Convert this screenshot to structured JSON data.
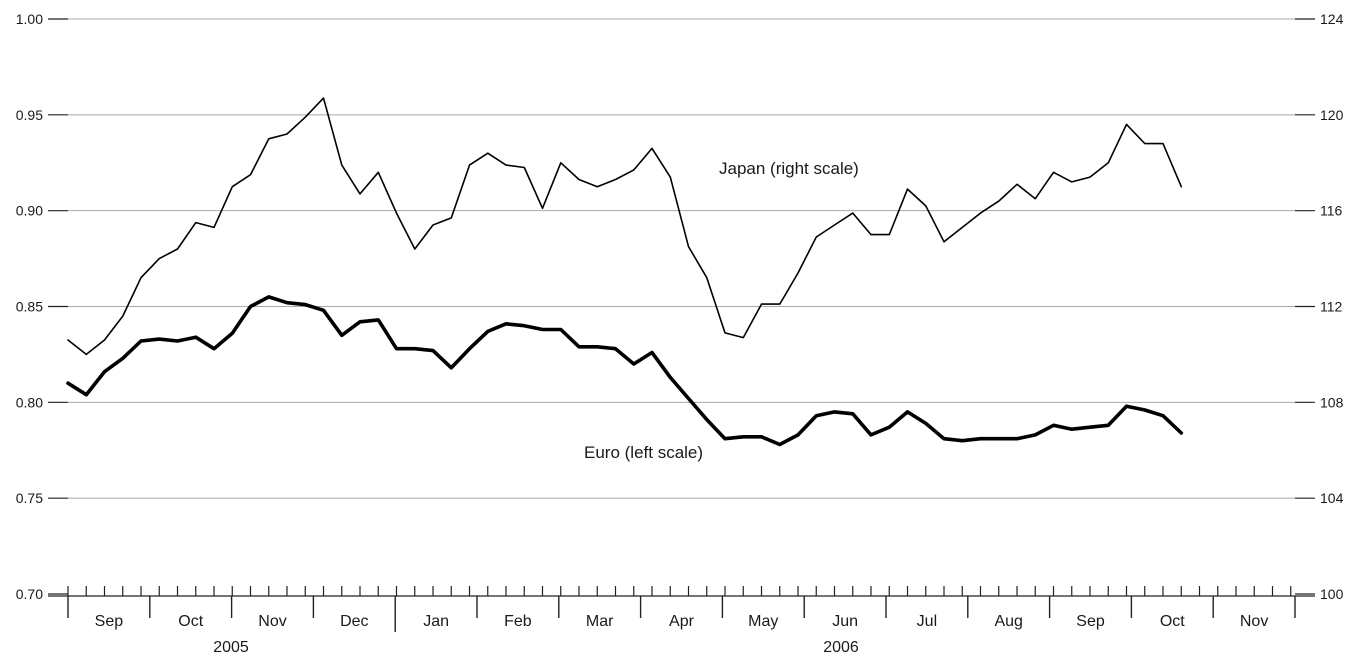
{
  "chart_data": {
    "type": "line",
    "title": "",
    "xlabel": "",
    "ylabel": "",
    "grid": true,
    "x_axis": {
      "months": [
        {
          "label": "Sep",
          "year": 2005
        },
        {
          "label": "Oct",
          "year": 2005
        },
        {
          "label": "Nov",
          "year": 2005
        },
        {
          "label": "Dec",
          "year": 2005
        },
        {
          "label": "Jan",
          "year": 2006
        },
        {
          "label": "Feb",
          "year": 2006
        },
        {
          "label": "Mar",
          "year": 2006
        },
        {
          "label": "Apr",
          "year": 2006
        },
        {
          "label": "May",
          "year": 2006
        },
        {
          "label": "Jun",
          "year": 2006
        },
        {
          "label": "Jul",
          "year": 2006
        },
        {
          "label": "Aug",
          "year": 2006
        },
        {
          "label": "Sep",
          "year": 2006
        },
        {
          "label": "Oct",
          "year": 2006
        },
        {
          "label": "Nov",
          "year": 2006
        }
      ],
      "years": [
        "2005",
        "2006"
      ]
    },
    "y_left": {
      "ylim": [
        0.7,
        1.0
      ],
      "ticks": [
        "0.70",
        "0.75",
        "0.80",
        "0.85",
        "0.90",
        "0.95",
        "1.00"
      ]
    },
    "y_right": {
      "ylim": [
        100,
        124
      ],
      "ticks": [
        "100",
        "104",
        "108",
        "112",
        "116",
        "120",
        "124"
      ]
    },
    "series": [
      {
        "name": "Japan (right scale)",
        "axis": "right",
        "values": [
          110.6,
          110.0,
          110.6,
          111.6,
          113.2,
          114.0,
          114.4,
          115.5,
          115.3,
          117.0,
          117.5,
          119.0,
          119.2,
          119.9,
          120.7,
          117.9,
          116.7,
          117.6,
          115.9,
          114.4,
          115.4,
          115.7,
          117.9,
          118.4,
          117.9,
          117.8,
          116.1,
          118.0,
          117.3,
          117.0,
          117.3,
          117.7,
          118.6,
          117.4,
          114.5,
          113.2,
          110.9,
          110.7,
          112.1,
          112.1,
          113.4,
          114.9,
          115.4,
          115.9,
          115.0,
          115.0,
          116.9,
          116.2,
          114.7,
          115.3,
          115.9,
          116.4,
          117.1,
          116.5,
          117.6,
          117.2,
          117.4,
          118.0,
          119.6,
          118.8,
          118.8,
          117.0
        ]
      },
      {
        "name": "Euro (left scale)",
        "axis": "left",
        "values": [
          0.81,
          0.804,
          0.816,
          0.823,
          0.832,
          0.833,
          0.832,
          0.834,
          0.828,
          0.836,
          0.85,
          0.855,
          0.852,
          0.851,
          0.848,
          0.835,
          0.842,
          0.843,
          0.828,
          0.828,
          0.827,
          0.818,
          0.828,
          0.837,
          0.841,
          0.84,
          0.838,
          0.838,
          0.829,
          0.829,
          0.828,
          0.82,
          0.826,
          0.813,
          0.802,
          0.791,
          0.781,
          0.782,
          0.782,
          0.778,
          0.783,
          0.793,
          0.795,
          0.794,
          0.783,
          0.787,
          0.795,
          0.789,
          0.781,
          0.78,
          0.781,
          0.781,
          0.781,
          0.783,
          0.788,
          0.786,
          0.787,
          0.788,
          0.798,
          0.796,
          0.793,
          0.784
        ]
      }
    ]
  }
}
